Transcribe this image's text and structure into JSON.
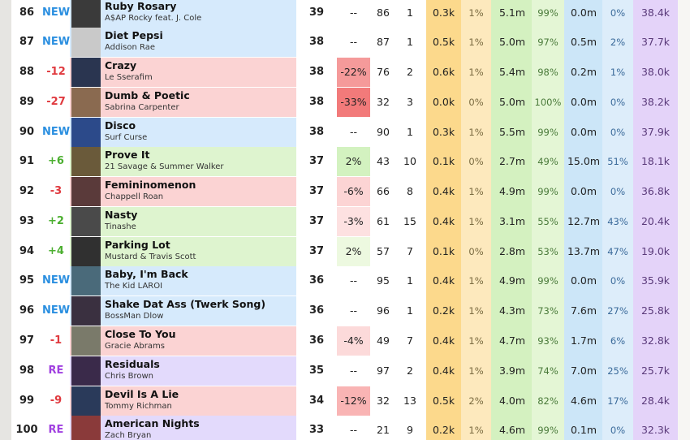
{
  "table": {
    "rows": [
      {
        "rank": "86",
        "change": "NEW",
        "title": "Ruby Rosary",
        "artist": "A$AP Rocky feat. J. Cole",
        "points": "39",
        "change_pct": "--",
        "prev": "86",
        "weeks": "1",
        "a": "0.3k",
        "a_pct": "1%",
        "b": "5.1m",
        "b_pct": "99%",
        "c": "0.0m",
        "c_pct": "0%",
        "total": "38.4k",
        "row_color": "#d6eafc",
        "change_color": "#2b8fe0",
        "pct_color": null
      },
      {
        "rank": "87",
        "change": "NEW",
        "title": "Diet Pepsi",
        "artist": "Addison Rae",
        "points": "38",
        "change_pct": "--",
        "prev": "87",
        "weeks": "1",
        "a": "0.5k",
        "a_pct": "1%",
        "b": "5.0m",
        "b_pct": "97%",
        "c": "0.5m",
        "c_pct": "2%",
        "total": "37.7k",
        "row_color": "#d6eafc",
        "change_color": "#2b8fe0",
        "pct_color": null
      },
      {
        "rank": "88",
        "change": "-12",
        "title": "Crazy",
        "artist": "Le Sserafim",
        "points": "38",
        "change_pct": "-22%",
        "prev": "76",
        "weeks": "2",
        "a": "0.6k",
        "a_pct": "1%",
        "b": "5.4m",
        "b_pct": "98%",
        "c": "0.2m",
        "c_pct": "1%",
        "total": "38.0k",
        "row_color": "#fbd3d3",
        "change_color": "#e0393e",
        "pct_color": "#f59a9a"
      },
      {
        "rank": "89",
        "change": "-27",
        "title": "Dumb & Poetic",
        "artist": "Sabrina Carpenter",
        "points": "38",
        "change_pct": "-33%",
        "prev": "32",
        "weeks": "3",
        "a": "0.0k",
        "a_pct": "0%",
        "b": "5.0m",
        "b_pct": "100%",
        "c": "0.0m",
        "c_pct": "0%",
        "total": "38.2k",
        "row_color": "#fbd3d3",
        "change_color": "#e0393e",
        "pct_color": "#f27a7a"
      },
      {
        "rank": "90",
        "change": "NEW",
        "title": "Disco",
        "artist": "Surf Curse",
        "points": "38",
        "change_pct": "--",
        "prev": "90",
        "weeks": "1",
        "a": "0.3k",
        "a_pct": "1%",
        "b": "5.5m",
        "b_pct": "99%",
        "c": "0.0m",
        "c_pct": "0%",
        "total": "37.9k",
        "row_color": "#d6eafc",
        "change_color": "#2b8fe0",
        "pct_color": null
      },
      {
        "rank": "91",
        "change": "+6",
        "title": "Prove It",
        "artist": "21 Savage & Summer Walker",
        "points": "37",
        "change_pct": "2%",
        "prev": "43",
        "weeks": "10",
        "a": "0.1k",
        "a_pct": "0%",
        "b": "2.7m",
        "b_pct": "49%",
        "c": "15.0m",
        "c_pct": "51%",
        "total": "18.1k",
        "row_color": "#def4cf",
        "change_color": "#4caf30",
        "pct_color": "#d3f2c0"
      },
      {
        "rank": "92",
        "change": "-3",
        "title": "Femininomenon",
        "artist": "Chappell Roan",
        "points": "37",
        "change_pct": "-6%",
        "prev": "66",
        "weeks": "8",
        "a": "0.4k",
        "a_pct": "1%",
        "b": "4.9m",
        "b_pct": "99%",
        "c": "0.0m",
        "c_pct": "0%",
        "total": "36.8k",
        "row_color": "#fbd3d3",
        "change_color": "#e0393e",
        "pct_color": "#fcd4d4"
      },
      {
        "rank": "93",
        "change": "+2",
        "title": "Nasty",
        "artist": "Tinashe",
        "points": "37",
        "change_pct": "-3%",
        "prev": "61",
        "weeks": "15",
        "a": "0.4k",
        "a_pct": "1%",
        "b": "3.1m",
        "b_pct": "55%",
        "c": "12.7m",
        "c_pct": "43%",
        "total": "20.4k",
        "row_color": "#def4cf",
        "change_color": "#4caf30",
        "pct_color": "#fde1e1"
      },
      {
        "rank": "94",
        "change": "+4",
        "title": "Parking Lot",
        "artist": "Mustard & Travis Scott",
        "points": "37",
        "change_pct": "2%",
        "prev": "57",
        "weeks": "7",
        "a": "0.1k",
        "a_pct": "0%",
        "b": "2.8m",
        "b_pct": "53%",
        "c": "13.7m",
        "c_pct": "47%",
        "total": "19.0k",
        "row_color": "#def4cf",
        "change_color": "#4caf30",
        "pct_color": "#edf9e0"
      },
      {
        "rank": "95",
        "change": "NEW",
        "title": "Baby, I'm Back",
        "artist": "The Kid LAROI",
        "points": "36",
        "change_pct": "--",
        "prev": "95",
        "weeks": "1",
        "a": "0.4k",
        "a_pct": "1%",
        "b": "4.9m",
        "b_pct": "99%",
        "c": "0.0m",
        "c_pct": "0%",
        "total": "35.9k",
        "row_color": "#d6eafc",
        "change_color": "#2b8fe0",
        "pct_color": null
      },
      {
        "rank": "96",
        "change": "NEW",
        "title": "Shake Dat Ass (Twerk Song)",
        "artist": "BossMan Dlow",
        "points": "36",
        "change_pct": "--",
        "prev": "96",
        "weeks": "1",
        "a": "0.2k",
        "a_pct": "1%",
        "b": "4.3m",
        "b_pct": "73%",
        "c": "7.6m",
        "c_pct": "27%",
        "total": "25.8k",
        "row_color": "#d6eafc",
        "change_color": "#2b8fe0",
        "pct_color": null
      },
      {
        "rank": "97",
        "change": "-1",
        "title": "Close To You",
        "artist": "Gracie Abrams",
        "points": "36",
        "change_pct": "-4%",
        "prev": "49",
        "weeks": "7",
        "a": "0.4k",
        "a_pct": "1%",
        "b": "4.7m",
        "b_pct": "93%",
        "c": "1.7m",
        "c_pct": "6%",
        "total": "32.8k",
        "row_color": "#fbd3d3",
        "change_color": "#e0393e",
        "pct_color": "#fcdada"
      },
      {
        "rank": "98",
        "change": "RE",
        "title": "Residuals",
        "artist": "Chris Brown",
        "points": "35",
        "change_pct": "--",
        "prev": "97",
        "weeks": "2",
        "a": "0.4k",
        "a_pct": "1%",
        "b": "3.9m",
        "b_pct": "74%",
        "c": "7.0m",
        "c_pct": "25%",
        "total": "25.7k",
        "row_color": "#e3dafc",
        "change_color": "#a040e0",
        "pct_color": null
      },
      {
        "rank": "99",
        "change": "-9",
        "title": "Devil Is A Lie",
        "artist": "Tommy Richman",
        "points": "34",
        "change_pct": "-12%",
        "prev": "32",
        "weeks": "13",
        "a": "0.5k",
        "a_pct": "2%",
        "b": "4.0m",
        "b_pct": "82%",
        "c": "4.6m",
        "c_pct": "17%",
        "total": "28.4k",
        "row_color": "#fbd3d3",
        "change_color": "#e0393e",
        "pct_color": "#f9b4b4"
      },
      {
        "rank": "100",
        "change": "RE",
        "title": "American Nights",
        "artist": "Zach Bryan",
        "points": "33",
        "change_pct": "--",
        "prev": "21",
        "weeks": "9",
        "a": "0.2k",
        "a_pct": "1%",
        "b": "4.6m",
        "b_pct": "99%",
        "c": "0.1m",
        "c_pct": "0%",
        "total": "32.3k",
        "row_color": "#e3dafc",
        "change_color": "#a040e0",
        "pct_color": null
      }
    ]
  }
}
